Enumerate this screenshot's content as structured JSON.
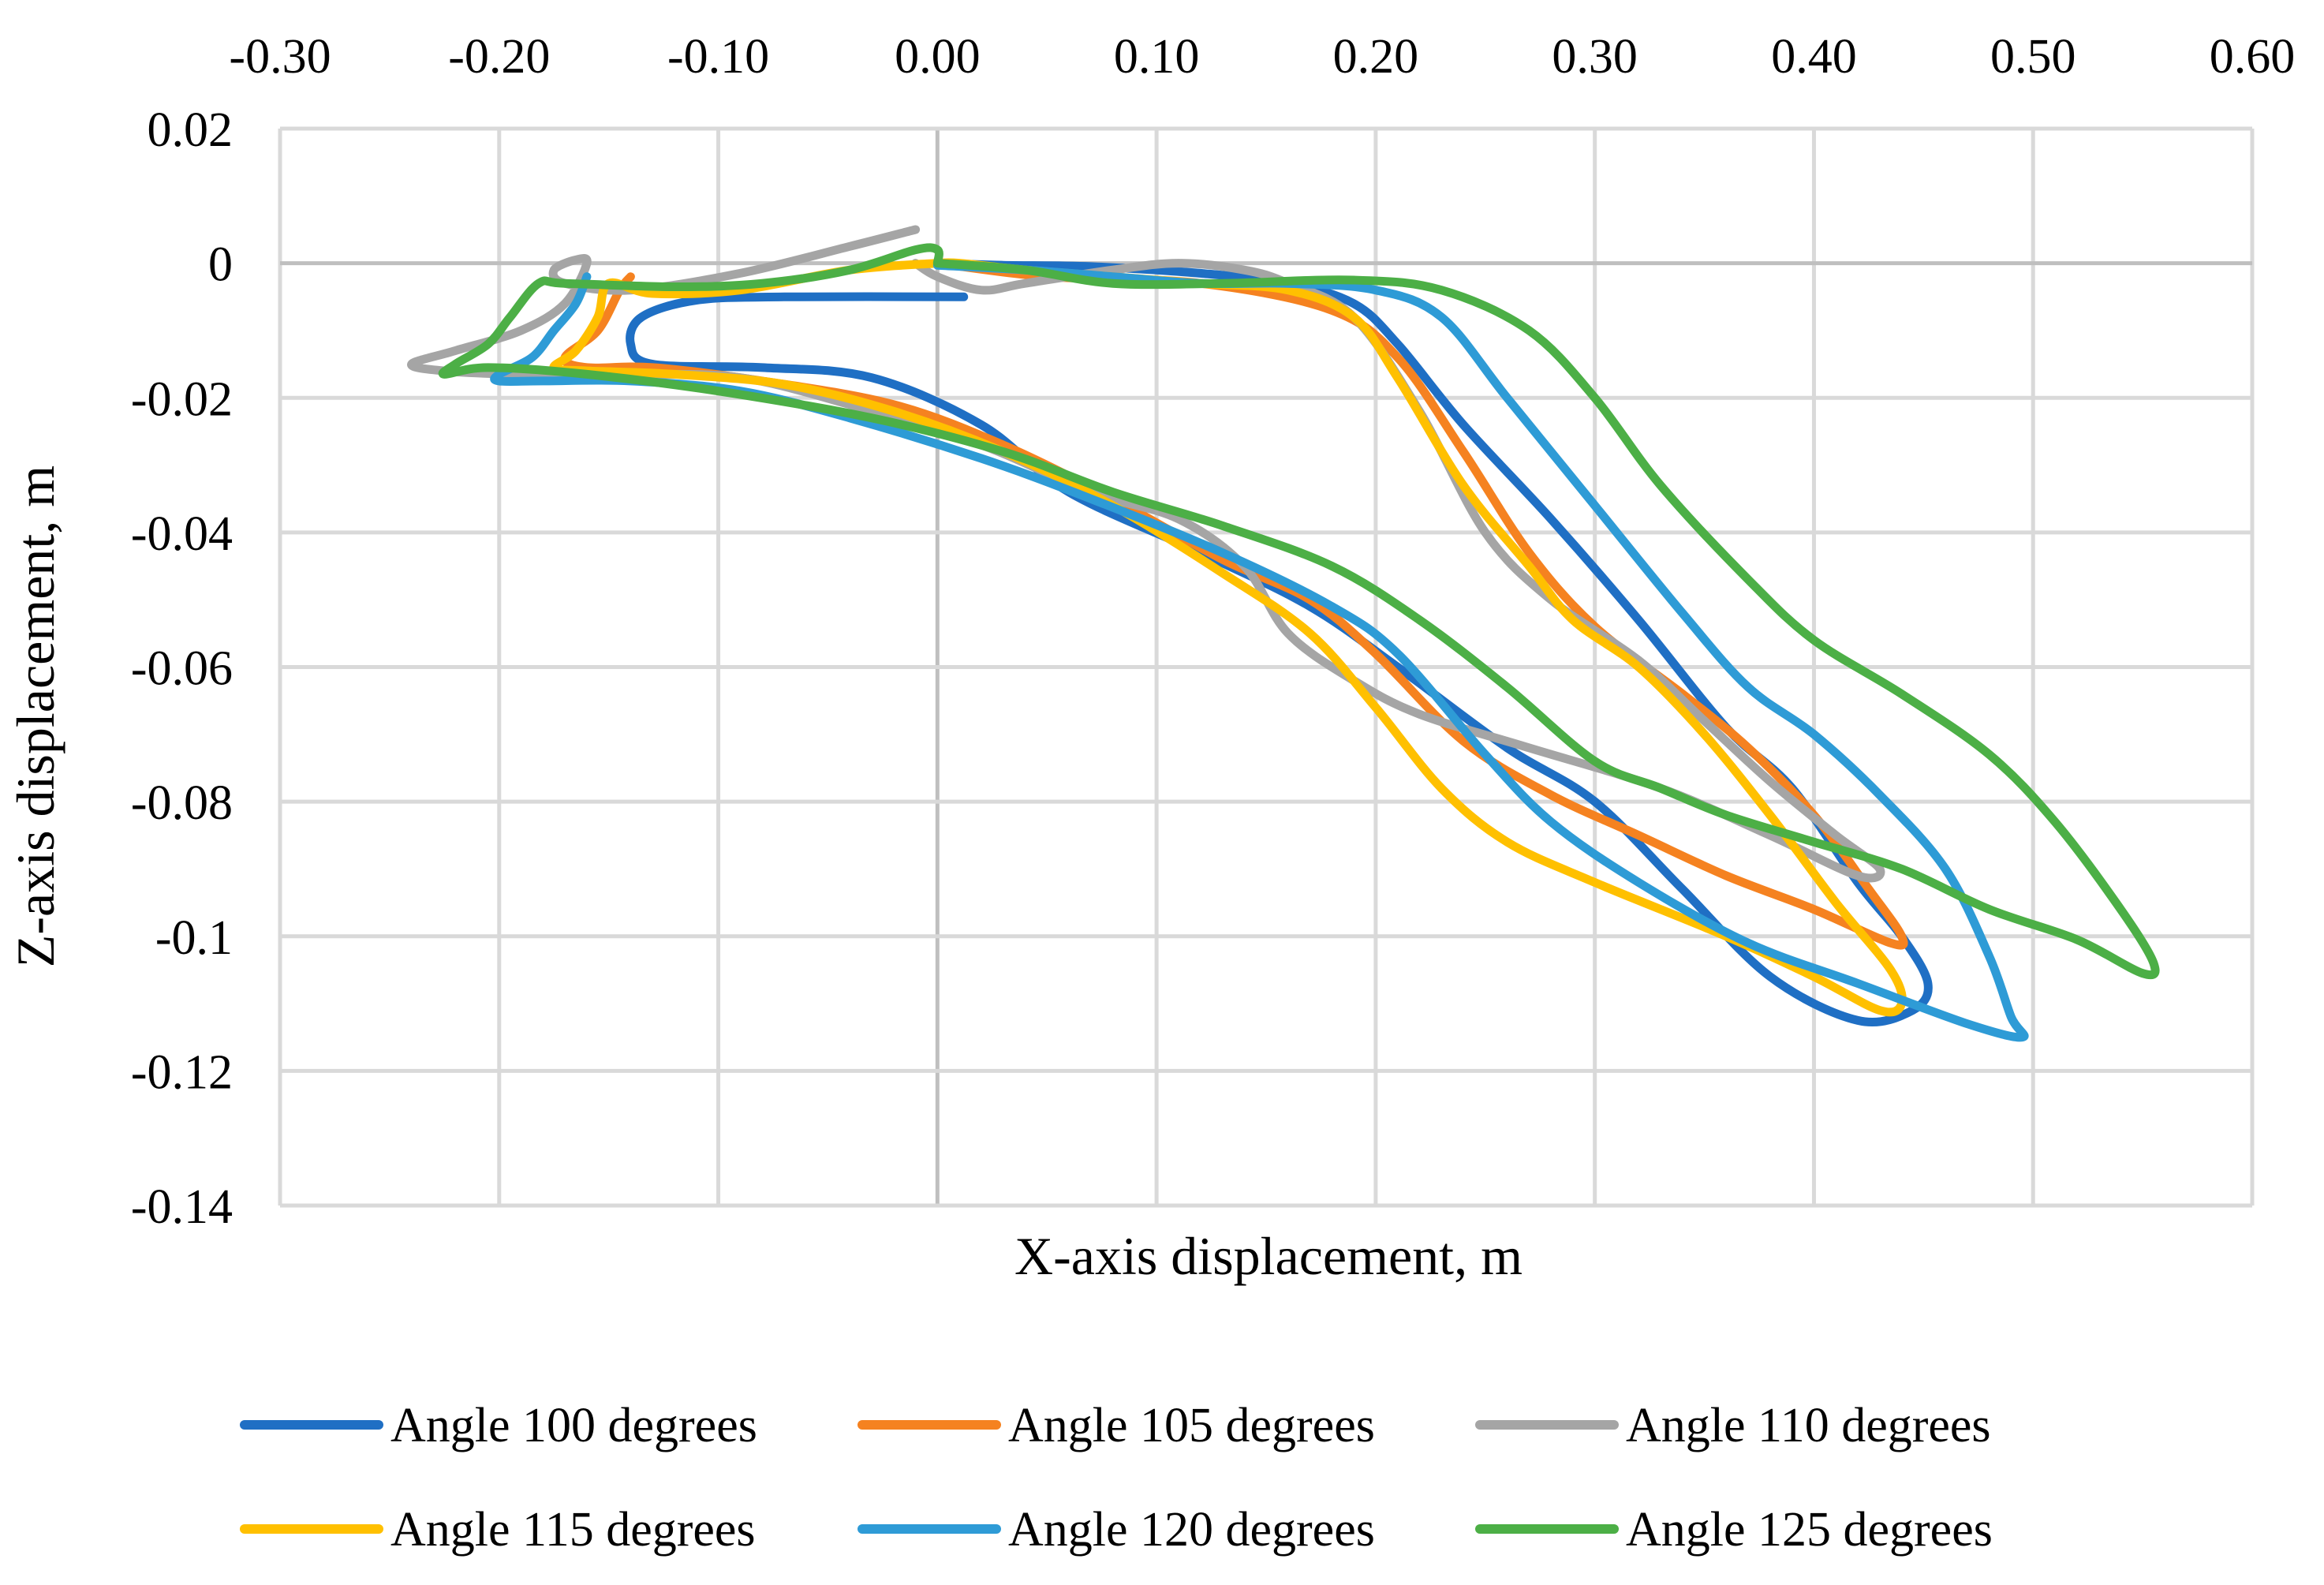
{
  "chart_data": {
    "type": "line",
    "xlabel": "X-axis displacement, m",
    "ylabel": "Z-axis displacement, m",
    "x_axis_position": "top",
    "xlim": [
      -0.3,
      0.6
    ],
    "ylim": [
      -0.14,
      0.02
    ],
    "x_ticks": [
      -0.3,
      -0.2,
      -0.1,
      0.0,
      0.1,
      0.2,
      0.3,
      0.4,
      0.5,
      0.6
    ],
    "x_tick_labels": [
      "-0.30",
      "-0.20",
      "-0.10",
      "0.00",
      "0.10",
      "0.20",
      "0.30",
      "0.40",
      "0.50",
      "0.60"
    ],
    "y_ticks": [
      0.02,
      0,
      -0.02,
      -0.04,
      -0.06,
      -0.08,
      -0.1,
      -0.12,
      -0.14
    ],
    "y_tick_labels": [
      "0.02",
      "0",
      "-0.02",
      "-0.04",
      "-0.06",
      "-0.08",
      "-0.1",
      "-0.12",
      "-0.14"
    ],
    "grid": true,
    "legend_position": "bottom",
    "series": [
      {
        "name": "Angle 100 degrees",
        "color": "#1F6FC4",
        "points": [
          [
            0.012,
            -0.005
          ],
          [
            -0.07,
            -0.005
          ],
          [
            -0.11,
            -0.0055
          ],
          [
            -0.135,
            -0.008
          ],
          [
            -0.14,
            -0.012
          ],
          [
            -0.13,
            -0.015
          ],
          [
            -0.08,
            -0.0155
          ],
          [
            -0.03,
            -0.017
          ],
          [
            0.02,
            -0.024
          ],
          [
            0.06,
            -0.034
          ],
          [
            0.12,
            -0.043
          ],
          [
            0.17,
            -0.051
          ],
          [
            0.21,
            -0.06
          ],
          [
            0.26,
            -0.072
          ],
          [
            0.3,
            -0.08
          ],
          [
            0.34,
            -0.093
          ],
          [
            0.38,
            -0.106
          ],
          [
            0.42,
            -0.1125
          ],
          [
            0.445,
            -0.111
          ],
          [
            0.452,
            -0.107
          ],
          [
            0.44,
            -0.1
          ],
          [
            0.42,
            -0.092
          ],
          [
            0.39,
            -0.078
          ],
          [
            0.36,
            -0.069
          ],
          [
            0.32,
            -0.053
          ],
          [
            0.28,
            -0.038
          ],
          [
            0.24,
            -0.024
          ],
          [
            0.21,
            -0.012
          ],
          [
            0.19,
            -0.006
          ],
          [
            0.16,
            -0.003
          ],
          [
            0.12,
            -0.0015
          ],
          [
            0.07,
            -0.0005
          ],
          [
            0.03,
            -0.0003
          ],
          [
            0.0,
            0.0
          ]
        ]
      },
      {
        "name": "Angle 105 degrees",
        "color": "#F58220",
        "points": [
          [
            -0.0,
            0.0
          ],
          [
            0.05,
            -0.002
          ],
          [
            0.12,
            -0.003
          ],
          [
            0.18,
            -0.007
          ],
          [
            0.21,
            -0.014
          ],
          [
            0.24,
            -0.028
          ],
          [
            0.27,
            -0.043
          ],
          [
            0.3,
            -0.054
          ],
          [
            0.34,
            -0.064
          ],
          [
            0.37,
            -0.072
          ],
          [
            0.4,
            -0.082
          ],
          [
            0.425,
            -0.093
          ],
          [
            0.44,
            -0.1
          ],
          [
            0.435,
            -0.101
          ],
          [
            0.4,
            -0.096
          ],
          [
            0.36,
            -0.091
          ],
          [
            0.32,
            -0.085
          ],
          [
            0.28,
            -0.079
          ],
          [
            0.24,
            -0.071
          ],
          [
            0.2,
            -0.058
          ],
          [
            0.17,
            -0.05
          ],
          [
            0.13,
            -0.044
          ],
          [
            0.08,
            -0.035
          ],
          [
            0.03,
            -0.027
          ],
          [
            -0.02,
            -0.021
          ],
          [
            -0.08,
            -0.0175
          ],
          [
            -0.13,
            -0.0155
          ],
          [
            -0.16,
            -0.0155
          ],
          [
            -0.17,
            -0.014
          ],
          [
            -0.155,
            -0.01
          ],
          [
            -0.145,
            -0.004
          ],
          [
            -0.14,
            -0.002
          ]
        ]
      },
      {
        "name": "Angle 110 degrees",
        "color": "#A5A5A5",
        "points": [
          [
            -0.01,
            0.005
          ],
          [
            -0.04,
            0.0025
          ],
          [
            -0.09,
            -0.0015
          ],
          [
            -0.14,
            -0.004
          ],
          [
            -0.17,
            -0.003
          ],
          [
            -0.175,
            -0.001
          ],
          [
            -0.165,
            0.0005
          ],
          [
            -0.16,
            0.0
          ],
          [
            -0.17,
            -0.006
          ],
          [
            -0.19,
            -0.01
          ],
          [
            -0.22,
            -0.013
          ],
          [
            -0.24,
            -0.015
          ],
          [
            -0.225,
            -0.016
          ],
          [
            -0.19,
            -0.0165
          ],
          [
            -0.14,
            -0.0165
          ],
          [
            -0.09,
            -0.017
          ],
          [
            -0.04,
            -0.021
          ],
          [
            0.02,
            -0.027
          ],
          [
            0.07,
            -0.034
          ],
          [
            0.11,
            -0.038
          ],
          [
            0.14,
            -0.045
          ],
          [
            0.16,
            -0.055
          ],
          [
            0.19,
            -0.062
          ],
          [
            0.22,
            -0.067
          ],
          [
            0.27,
            -0.072
          ],
          [
            0.33,
            -0.078
          ],
          [
            0.38,
            -0.085
          ],
          [
            0.42,
            -0.091
          ],
          [
            0.43,
            -0.09
          ],
          [
            0.41,
            -0.085
          ],
          [
            0.38,
            -0.077
          ],
          [
            0.35,
            -0.068
          ],
          [
            0.32,
            -0.059
          ],
          [
            0.28,
            -0.05
          ],
          [
            0.25,
            -0.04
          ],
          [
            0.22,
            -0.022
          ],
          [
            0.19,
            -0.008
          ],
          [
            0.16,
            -0.003
          ],
          [
            0.14,
            -0.001
          ],
          [
            0.11,
            0.0
          ],
          [
            0.08,
            -0.001
          ],
          [
            0.04,
            -0.003
          ],
          [
            0.02,
            -0.004
          ],
          [
            0.0,
            -0.002
          ],
          [
            -0.01,
            0.0
          ]
        ]
      },
      {
        "name": "Angle 115 degrees",
        "color": "#FFC000",
        "points": [
          [
            0.0,
            0.0
          ],
          [
            -0.04,
            -0.001
          ],
          [
            -0.09,
            -0.004
          ],
          [
            -0.13,
            -0.0045
          ],
          [
            -0.15,
            -0.003
          ],
          [
            -0.155,
            -0.008
          ],
          [
            -0.165,
            -0.013
          ],
          [
            -0.175,
            -0.0155
          ],
          [
            -0.16,
            -0.016
          ],
          [
            -0.12,
            -0.0165
          ],
          [
            -0.07,
            -0.018
          ],
          [
            -0.02,
            -0.022
          ],
          [
            0.03,
            -0.028
          ],
          [
            0.08,
            -0.036
          ],
          [
            0.13,
            -0.046
          ],
          [
            0.17,
            -0.055
          ],
          [
            0.2,
            -0.066
          ],
          [
            0.23,
            -0.078
          ],
          [
            0.26,
            -0.086
          ],
          [
            0.3,
            -0.092
          ],
          [
            0.36,
            -0.1
          ],
          [
            0.4,
            -0.106
          ],
          [
            0.43,
            -0.111
          ],
          [
            0.44,
            -0.11
          ],
          [
            0.435,
            -0.105
          ],
          [
            0.41,
            -0.095
          ],
          [
            0.38,
            -0.082
          ],
          [
            0.35,
            -0.07
          ],
          [
            0.32,
            -0.06
          ],
          [
            0.29,
            -0.053
          ],
          [
            0.27,
            -0.045
          ],
          [
            0.24,
            -0.033
          ],
          [
            0.21,
            -0.017
          ],
          [
            0.19,
            -0.008
          ],
          [
            0.16,
            -0.004
          ],
          [
            0.12,
            -0.003
          ],
          [
            0.08,
            -0.002
          ],
          [
            0.04,
            -0.001
          ],
          [
            0.01,
            0.0
          ],
          [
            0.0,
            0.0
          ]
        ]
      },
      {
        "name": "Angle 120 degrees",
        "color": "#2E9BD6",
        "points": [
          [
            -0.16,
            -0.002
          ],
          [
            -0.165,
            -0.006
          ],
          [
            -0.175,
            -0.01
          ],
          [
            -0.185,
            -0.014
          ],
          [
            -0.2,
            -0.0165
          ],
          [
            -0.2,
            -0.0175
          ],
          [
            -0.18,
            -0.0175
          ],
          [
            -0.14,
            -0.0175
          ],
          [
            -0.09,
            -0.019
          ],
          [
            -0.04,
            -0.023
          ],
          [
            0.02,
            -0.029
          ],
          [
            0.07,
            -0.035
          ],
          [
            0.13,
            -0.043
          ],
          [
            0.18,
            -0.051
          ],
          [
            0.21,
            -0.058
          ],
          [
            0.25,
            -0.073
          ],
          [
            0.28,
            -0.083
          ],
          [
            0.32,
            -0.092
          ],
          [
            0.37,
            -0.101
          ],
          [
            0.42,
            -0.107
          ],
          [
            0.47,
            -0.113
          ],
          [
            0.495,
            -0.115
          ],
          [
            0.49,
            -0.112
          ],
          [
            0.48,
            -0.103
          ],
          [
            0.46,
            -0.09
          ],
          [
            0.43,
            -0.079
          ],
          [
            0.4,
            -0.07
          ],
          [
            0.37,
            -0.063
          ],
          [
            0.34,
            -0.052
          ],
          [
            0.3,
            -0.036
          ],
          [
            0.26,
            -0.02
          ],
          [
            0.23,
            -0.008
          ],
          [
            0.2,
            -0.004
          ],
          [
            0.16,
            -0.003
          ],
          [
            0.12,
            -0.003
          ],
          [
            0.08,
            -0.002
          ],
          [
            0.04,
            -0.001
          ],
          [
            0.0,
            -0.0003
          ]
        ]
      },
      {
        "name": "Angle 125 degrees",
        "color": "#4CAF46",
        "points": [
          [
            0.0,
            0.0
          ],
          [
            0.04,
            -0.001
          ],
          [
            0.08,
            -0.003
          ],
          [
            0.13,
            -0.003
          ],
          [
            0.19,
            -0.0025
          ],
          [
            0.23,
            -0.004
          ],
          [
            0.27,
            -0.01
          ],
          [
            0.3,
            -0.02
          ],
          [
            0.33,
            -0.033
          ],
          [
            0.37,
            -0.047
          ],
          [
            0.4,
            -0.056
          ],
          [
            0.44,
            -0.064
          ],
          [
            0.48,
            -0.073
          ],
          [
            0.51,
            -0.083
          ],
          [
            0.54,
            -0.096
          ],
          [
            0.555,
            -0.104
          ],
          [
            0.55,
            -0.1055
          ],
          [
            0.52,
            -0.1005
          ],
          [
            0.48,
            -0.096
          ],
          [
            0.44,
            -0.09
          ],
          [
            0.4,
            -0.086
          ],
          [
            0.36,
            -0.082
          ],
          [
            0.33,
            -0.078
          ],
          [
            0.3,
            -0.074
          ],
          [
            0.26,
            -0.063
          ],
          [
            0.22,
            -0.053
          ],
          [
            0.18,
            -0.045
          ],
          [
            0.13,
            -0.039
          ],
          [
            0.08,
            -0.034
          ],
          [
            0.03,
            -0.028
          ],
          [
            -0.03,
            -0.023
          ],
          [
            -0.1,
            -0.019
          ],
          [
            -0.16,
            -0.0165
          ],
          [
            -0.205,
            -0.0155
          ],
          [
            -0.225,
            -0.0165
          ],
          [
            -0.22,
            -0.015
          ],
          [
            -0.205,
            -0.012
          ],
          [
            -0.195,
            -0.008
          ],
          [
            -0.182,
            -0.003
          ],
          [
            -0.17,
            -0.003
          ],
          [
            -0.12,
            -0.0035
          ],
          [
            -0.08,
            -0.003
          ],
          [
            -0.04,
            -0.001
          ],
          [
            -0.01,
            0.002
          ],
          [
            0.0,
            0.002
          ],
          [
            0.0,
            0.0
          ]
        ]
      }
    ]
  }
}
